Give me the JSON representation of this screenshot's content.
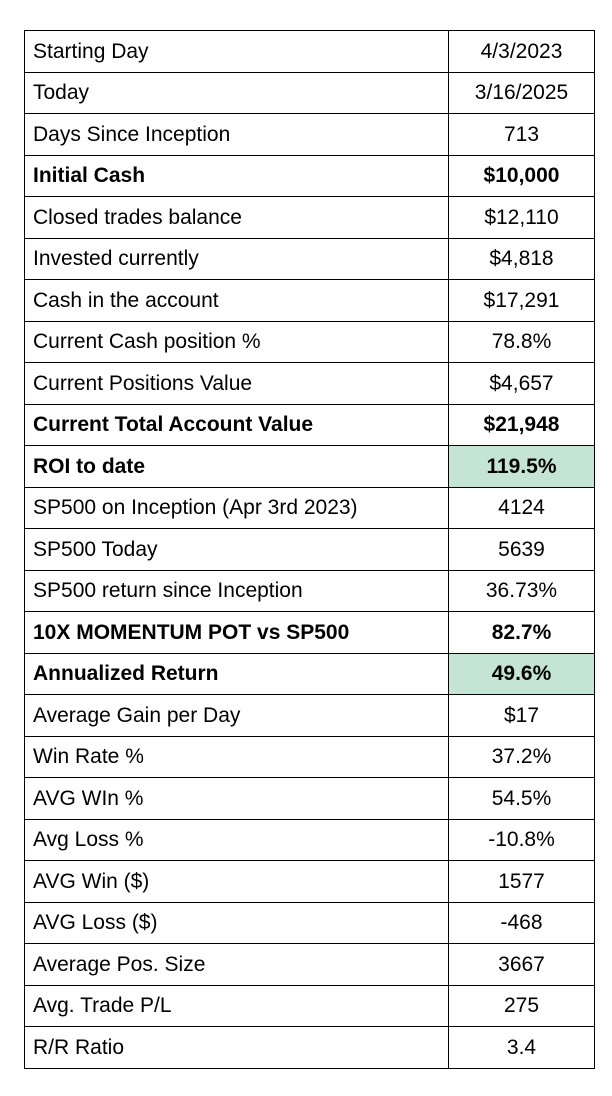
{
  "colors": {
    "highlight": "#c4e5d3",
    "border": "#000000"
  },
  "rows": [
    {
      "label": "Starting Day",
      "value": "4/3/2023",
      "bold": false,
      "highlight": false
    },
    {
      "label": "Today",
      "value": "3/16/2025",
      "bold": false,
      "highlight": false
    },
    {
      "label": "Days Since Inception",
      "value": "713",
      "bold": false,
      "highlight": false
    },
    {
      "label": "Initial Cash",
      "value": "$10,000",
      "bold": true,
      "highlight": false
    },
    {
      "label": "Closed trades balance",
      "value": "$12,110",
      "bold": false,
      "highlight": false
    },
    {
      "label": "Invested currently",
      "value": "$4,818",
      "bold": false,
      "highlight": false
    },
    {
      "label": "Cash in the account",
      "value": "$17,291",
      "bold": false,
      "highlight": false
    },
    {
      "label": "Current Cash position %",
      "value": "78.8%",
      "bold": false,
      "highlight": false
    },
    {
      "label": "Current Positions Value",
      "value": "$4,657",
      "bold": false,
      "highlight": false
    },
    {
      "label": "Current Total Account Value",
      "value": "$21,948",
      "bold": true,
      "highlight": false
    },
    {
      "label": "ROI to date",
      "value": "119.5%",
      "bold": true,
      "highlight": true
    },
    {
      "label": "SP500 on Inception (Apr 3rd 2023)",
      "value": "4124",
      "bold": false,
      "highlight": false
    },
    {
      "label": "SP500 Today",
      "value": "5639",
      "bold": false,
      "highlight": false
    },
    {
      "label": "SP500 return since Inception",
      "value": "36.73%",
      "bold": false,
      "highlight": false
    },
    {
      "label": "10X MOMENTUM POT vs SP500",
      "value": "82.7%",
      "bold": true,
      "highlight": false
    },
    {
      "label": "Annualized Return",
      "value": "49.6%",
      "bold": true,
      "highlight": true
    },
    {
      "label": "Average Gain per Day",
      "value": "$17",
      "bold": false,
      "highlight": false
    },
    {
      "label": "Win Rate %",
      "value": "37.2%",
      "bold": false,
      "highlight": false
    },
    {
      "label": "AVG WIn %",
      "value": "54.5%",
      "bold": false,
      "highlight": false
    },
    {
      "label": "Avg Loss %",
      "value": "-10.8%",
      "bold": false,
      "highlight": false
    },
    {
      "label": "AVG Win ($)",
      "value": "1577",
      "bold": false,
      "highlight": false
    },
    {
      "label": "AVG Loss ($)",
      "value": "-468",
      "bold": false,
      "highlight": false
    },
    {
      "label": "Average Pos. Size",
      "value": "3667",
      "bold": false,
      "highlight": false
    },
    {
      "label": "Avg. Trade P/L",
      "value": "275",
      "bold": false,
      "highlight": false
    },
    {
      "label": "R/R Ratio",
      "value": "3.4",
      "bold": false,
      "highlight": false
    }
  ]
}
